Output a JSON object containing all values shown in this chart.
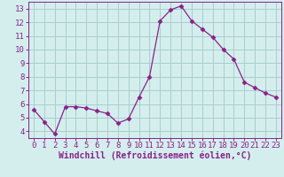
{
  "x": [
    0,
    1,
    2,
    3,
    4,
    5,
    6,
    7,
    8,
    9,
    10,
    11,
    12,
    13,
    14,
    15,
    16,
    17,
    18,
    19,
    20,
    21,
    22,
    23
  ],
  "y": [
    5.6,
    4.7,
    3.8,
    5.8,
    5.8,
    5.7,
    5.5,
    5.3,
    4.6,
    4.9,
    6.5,
    8.0,
    12.1,
    12.9,
    13.2,
    12.1,
    11.5,
    10.9,
    10.0,
    9.3,
    7.6,
    7.2,
    6.8,
    6.5
  ],
  "line_color": "#882288",
  "marker": "D",
  "marker_size": 2.5,
  "bg_color": "#d4eeee",
  "grid_color": "#aacccc",
  "xlabel": "Windchill (Refroidissement éolien,°C)",
  "xlabel_color": "#882288",
  "tick_color": "#882288",
  "ylim": [
    3.5,
    13.5
  ],
  "yticks": [
    4,
    5,
    6,
    7,
    8,
    9,
    10,
    11,
    12,
    13
  ],
  "xlim": [
    -0.5,
    23.5
  ],
  "xticks": [
    0,
    1,
    2,
    3,
    4,
    5,
    6,
    7,
    8,
    9,
    10,
    11,
    12,
    13,
    14,
    15,
    16,
    17,
    18,
    19,
    20,
    21,
    22,
    23
  ],
  "tick_fontsize": 6.5,
  "xlabel_fontsize": 7.0
}
